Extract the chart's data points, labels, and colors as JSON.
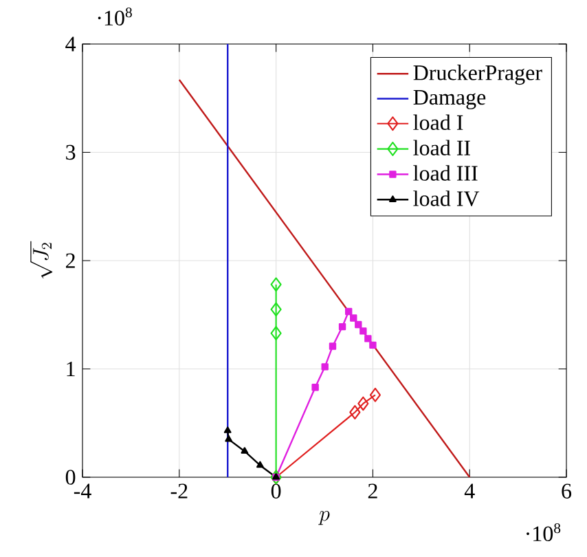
{
  "chart_data": {
    "type": "line",
    "xlabel": "p",
    "ylabel": "\\sqrt{J_2}",
    "xlim": [
      -4,
      6
    ],
    "ylim": [
      0,
      4
    ],
    "xticks": [
      -4,
      -2,
      0,
      2,
      4,
      6
    ],
    "yticks": [
      0,
      1,
      2,
      3,
      4
    ],
    "grid": true,
    "legend": "top right",
    "annotations": [
      "·10$^{8}$",
      "·10$^{8}$"
    ],
    "series": [
      {
        "name": "DruckerPrager",
        "color": "#c01a1a",
        "marker": "none",
        "x": [
          -2,
          4
        ],
        "values": [
          3.67,
          0
        ]
      },
      {
        "name": "Damage",
        "color": "#1a1ad0",
        "marker": "none",
        "x": [
          -1,
          -1
        ],
        "values": [
          0,
          4
        ]
      },
      {
        "name": "load I",
        "color": "#e02020",
        "marker": "diamond",
        "x": [
          0,
          1.63,
          1.8,
          2.05
        ],
        "values": [
          0,
          0.6,
          0.68,
          0.76
        ]
      },
      {
        "name": "load II",
        "color": "#20e020",
        "marker": "diamond",
        "x": [
          0,
          0,
          0,
          0
        ],
        "values": [
          0,
          1.33,
          1.55,
          1.78
        ]
      },
      {
        "name": "load III",
        "color": "#e020e0",
        "marker": "square",
        "x": [
          0,
          0.81,
          1.01,
          1.17,
          1.37,
          1.5,
          1.6,
          1.7,
          1.8,
          1.9,
          2.0
        ],
        "values": [
          0,
          0.83,
          1.02,
          1.21,
          1.39,
          1.53,
          1.47,
          1.41,
          1.35,
          1.28,
          1.22
        ]
      },
      {
        "name": "load IV",
        "color": "#000000",
        "marker": "triangle",
        "x": [
          0,
          -0.33,
          -0.65,
          -0.98,
          -1.0
        ],
        "values": [
          0,
          0.11,
          0.24,
          0.35,
          0.43
        ]
      }
    ]
  }
}
